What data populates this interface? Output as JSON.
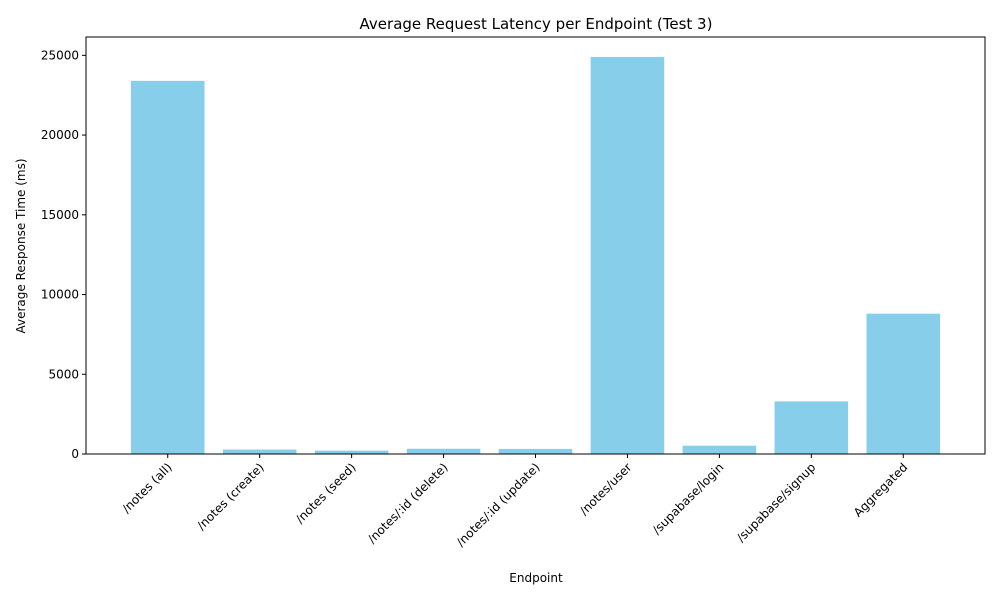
{
  "chart_data": {
    "type": "bar",
    "title": "Average Request Latency per Endpoint (Test 3)",
    "xlabel": "Endpoint",
    "ylabel": "Average Response Time (ms)",
    "categories": [
      "/notes (all)",
      "/notes (create)",
      "/notes (seed)",
      "/notes/:id (delete)",
      "/notes/:id (update)",
      "/notes/user",
      "/supabase/login",
      "/supabase/signup",
      "Aggregated"
    ],
    "values": [
      23400,
      280,
      210,
      330,
      320,
      24900,
      520,
      3300,
      8800
    ],
    "ylim": [
      0,
      26150
    ],
    "yticks": [
      0,
      5000,
      10000,
      15000,
      20000,
      25000
    ],
    "grid": false,
    "legend": "none",
    "bar_color": "#87ceeb"
  }
}
